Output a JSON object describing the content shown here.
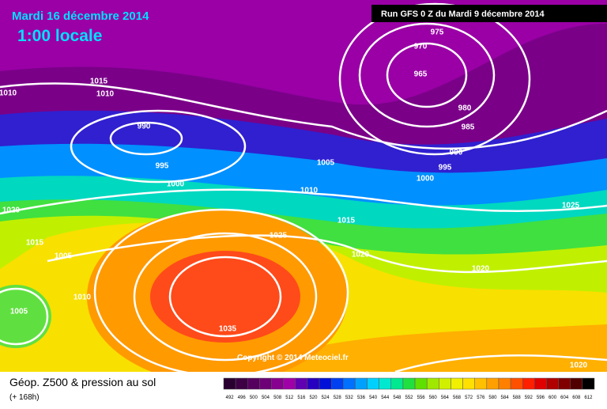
{
  "header": {
    "date": "Mardi 16 décembre 2014",
    "time": "1:00 locale",
    "run": "Run GFS 0 Z du Mardi 9 décembre 2014"
  },
  "copyright": "Copyright © 2014 Meteociel.fr",
  "footer": {
    "title": "Géop. Z500 & pression au sol",
    "lead": "(+ 168h)"
  },
  "isobar_labels": [
    1015,
    1010,
    1010,
    990,
    995,
    1000,
    975,
    970,
    965,
    980,
    985,
    990,
    995,
    1000,
    1005,
    1010,
    1015,
    1020,
    1015,
    1005,
    1010,
    1005,
    1025,
    1020,
    1020,
    1025,
    1035,
    1020
  ],
  "legend": {
    "values": [
      492,
      496,
      500,
      504,
      508,
      512,
      516,
      520,
      524,
      528,
      532,
      536,
      540,
      544,
      548,
      552,
      556,
      560,
      564,
      568,
      572,
      576,
      580,
      584,
      588,
      592,
      596,
      600,
      604,
      608,
      612
    ],
    "colors": [
      "#2a0030",
      "#3d0045",
      "#55005e",
      "#6e0077",
      "#880090",
      "#a000a8",
      "#6000b0",
      "#2800c0",
      "#0010d8",
      "#0040f0",
      "#0070ff",
      "#00a0ff",
      "#00d0ff",
      "#00e8d0",
      "#00e890",
      "#20e040",
      "#60e000",
      "#a0e800",
      "#d0f000",
      "#f0f000",
      "#ffe000",
      "#ffc000",
      "#ffa000",
      "#ff8000",
      "#ff5000",
      "#ff2000",
      "#e00000",
      "#b00000",
      "#800000",
      "#500000",
      "#000000"
    ]
  }
}
